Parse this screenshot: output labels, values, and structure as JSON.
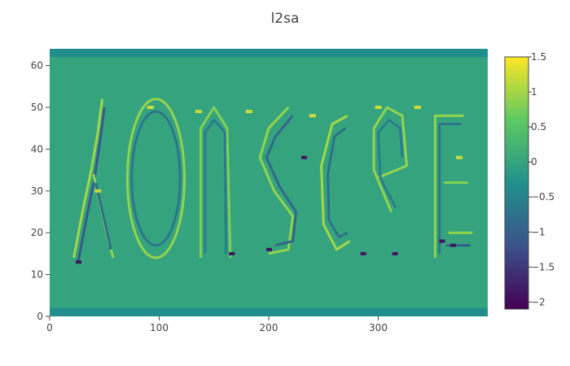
{
  "chart_data": {
    "type": "heatmap",
    "title": "l2sa",
    "xlabel": "",
    "ylabel": "",
    "xlim": [
      0,
      400
    ],
    "ylim": [
      0,
      64
    ],
    "xticks": [
      0,
      100,
      200,
      300
    ],
    "yticks": [
      0,
      10,
      20,
      30,
      40,
      50,
      60
    ],
    "colorscale": "viridis",
    "colorscale_stops": [
      "#440154",
      "#3b528b",
      "#21918c",
      "#5ec962",
      "#fde725"
    ],
    "zlim": [
      -2.1,
      1.5
    ],
    "colorbar_ticks": [
      1.5,
      1,
      0.5,
      0,
      -0.5,
      -1,
      -1.5,
      -2
    ],
    "colorbar_tick_labels": [
      "1.5",
      "1",
      "0.5",
      "0",
      "−0.5",
      "−1",
      "−1.5",
      "−2"
    ],
    "background_value": 0,
    "border_band_value": -0.35,
    "grid": false,
    "legend": "colorbar right"
  }
}
